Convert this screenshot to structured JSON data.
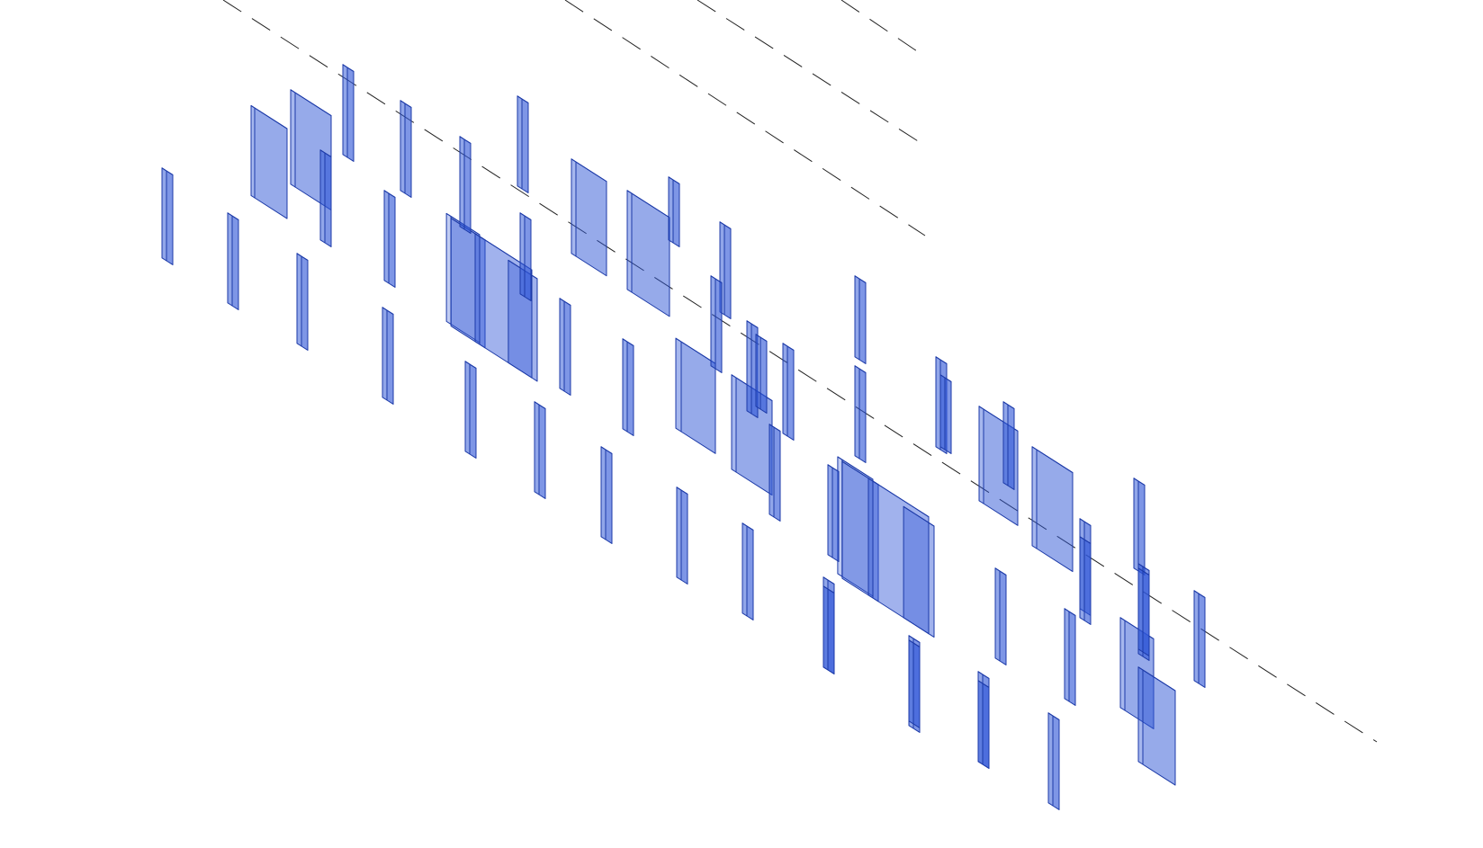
{
  "view": {
    "type": "isometric-3d-model",
    "background": "#ffffff",
    "element_color": "#2e55d6",
    "edge_color": "#1c3aa8",
    "axis_color": "#222222"
  },
  "grid_lines": [
    {
      "id": "grid-line-main"
    },
    {
      "id": "grid-line-upper-1"
    },
    {
      "id": "grid-line-upper-2"
    },
    {
      "id": "grid-line-upper-3"
    }
  ],
  "elements": {
    "walls": 10,
    "columns": 46,
    "core_shafts": 2
  }
}
